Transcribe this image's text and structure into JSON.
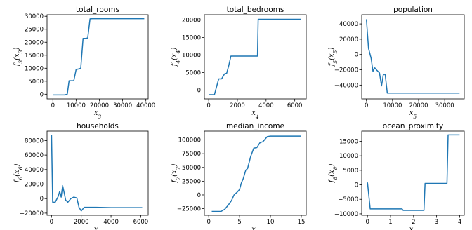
{
  "chart_data": [
    {
      "type": "line",
      "title": "total_rooms",
      "xlabel": "x3",
      "ylabel": "f3(x3)",
      "xlim": [
        -2500,
        41000
      ],
      "ylim": [
        -1800,
        30600
      ],
      "xticks": [
        0,
        10000,
        20000,
        30000,
        40000
      ],
      "yticks": [
        0,
        5000,
        10000,
        15000,
        20000,
        25000,
        30000
      ],
      "grid": false,
      "x": [
        0,
        5000,
        6200,
        7000,
        9000,
        10000,
        11000,
        12000,
        13000,
        14000,
        15000,
        16000,
        17000,
        20000,
        30000,
        39300
      ],
      "y": [
        -300,
        -300,
        0,
        5200,
        5200,
        9500,
        9700,
        10000,
        21500,
        21500,
        21600,
        29000,
        29100,
        29100,
        29100,
        29100
      ]
    },
    {
      "type": "line",
      "title": "total_bedrooms",
      "xlabel": "x4",
      "ylabel": "f4(x4)",
      "xlim": [
        -300,
        6800
      ],
      "ylim": [
        -2500,
        21500
      ],
      "xticks": [
        0,
        2000,
        4000,
        6000
      ],
      "yticks": [
        0,
        5000,
        10000,
        15000,
        20000
      ],
      "grid": false,
      "x": [
        0,
        400,
        700,
        900,
        1100,
        1250,
        1400,
        1550,
        1700,
        3400,
        3450,
        6450
      ],
      "y": [
        -1300,
        -1300,
        3200,
        3200,
        4600,
        4800,
        7000,
        9700,
        9700,
        9700,
        20200,
        20200
      ]
    },
    {
      "type": "line",
      "title": "population",
      "xlabel": "x5",
      "ylabel": "f5(x5)",
      "xlim": [
        -1800,
        37500
      ],
      "ylim": [
        -58000,
        52000
      ],
      "xticks": [
        0,
        10000,
        20000,
        30000
      ],
      "yticks": [
        -40000,
        -20000,
        0,
        20000,
        40000
      ],
      "grid": false,
      "x": [
        0,
        800,
        1800,
        2500,
        3200,
        4100,
        5000,
        5800,
        6500,
        7200,
        8000,
        12000,
        20000,
        30000,
        35700
      ],
      "y": [
        46000,
        8000,
        -5000,
        -22000,
        -17500,
        -21000,
        -24000,
        -41000,
        -26000,
        -26000,
        -50500,
        -50500,
        -50500,
        -50500,
        -50500
      ]
    },
    {
      "type": "line",
      "title": "households",
      "xlabel": "x6",
      "ylabel": "f6(x6)",
      "xlim": [
        -300,
        6500
      ],
      "ylim": [
        -23000,
        93000
      ],
      "xticks": [
        0,
        2000,
        4000,
        6000
      ],
      "yticks": [
        -20000,
        0,
        20000,
        40000,
        60000,
        80000
      ],
      "grid": false,
      "x": [
        0,
        80,
        250,
        450,
        550,
        650,
        750,
        850,
        950,
        1100,
        1300,
        1500,
        1700,
        1850,
        2000,
        2200,
        3000,
        4000,
        5000,
        6100
      ],
      "y": [
        88000,
        -5000,
        -5000,
        3000,
        10000,
        2000,
        18000,
        8000,
        -2000,
        -5000,
        0,
        2000,
        1000,
        -12000,
        -17000,
        -12000,
        -12000,
        -12500,
        -12500,
        -12500
      ],
      "x_printed": "x6"
    },
    {
      "type": "line",
      "title": "median_income",
      "xlabel": "x7",
      "ylabel": "f7(x7)",
      "xlim": [
        -0.7,
        15.8
      ],
      "ylim": [
        -37000,
        116000
      ],
      "xticks": [
        0,
        5,
        10,
        15
      ],
      "yticks": [
        -25000,
        0,
        25000,
        50000,
        75000,
        100000
      ],
      "grid": false,
      "x": [
        0.5,
        2.0,
        2.6,
        3.2,
        3.7,
        4.1,
        4.6,
        5.0,
        5.3,
        5.6,
        6.0,
        6.3,
        6.8,
        7.3,
        7.8,
        8.3,
        8.8,
        9.5,
        10.0,
        12.0,
        15.0
      ],
      "y": [
        -30000,
        -30000,
        -26000,
        -18000,
        -10000,
        0,
        5000,
        10000,
        22000,
        30000,
        45000,
        48000,
        70000,
        85000,
        86000,
        95000,
        97000,
        106000,
        107000,
        107000,
        107000
      ]
    },
    {
      "type": "line",
      "title": "ocean_proximity",
      "xlabel": "x8",
      "ylabel": "f8(x8)",
      "xlim": [
        -0.25,
        4.2
      ],
      "ylim": [
        -10500,
        18500
      ],
      "xticks": [
        0,
        1,
        2,
        3,
        4
      ],
      "yticks": [
        -10000,
        -5000,
        0,
        5000,
        10000,
        15000
      ],
      "grid": false,
      "x": [
        0,
        0.12,
        1.5,
        1.55,
        2.45,
        2.5,
        3.45,
        3.5,
        4.0
      ],
      "y": [
        800,
        -8300,
        -8300,
        -8800,
        -8800,
        500,
        500,
        17200,
        17200
      ]
    }
  ]
}
